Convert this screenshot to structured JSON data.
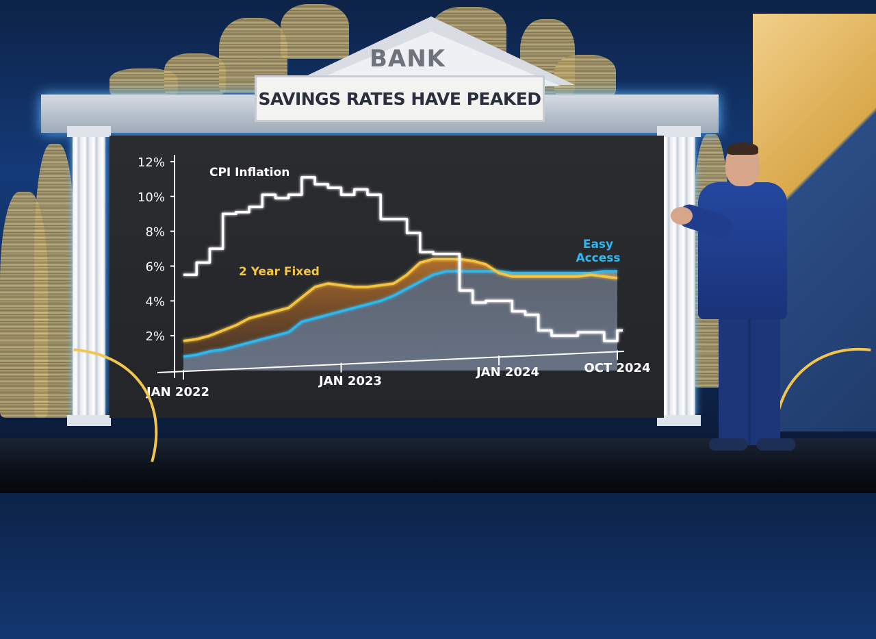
{
  "scene": {
    "roof_label": "BANK",
    "title": "SAVINGS RATES HAVE PEAKED"
  },
  "colors": {
    "cpi": "#ffffff",
    "fixed": "#f5c542",
    "easy": "#2fb8f0",
    "axis": "#ffffff",
    "screen": "#262729"
  },
  "chart_data": {
    "type": "line",
    "title": "SAVINGS RATES HAVE PEAKED",
    "ylim": [
      0,
      12
    ],
    "yticks": [
      2,
      4,
      6,
      8,
      10,
      12
    ],
    "ytick_labels": [
      "2%",
      "4%",
      "6%",
      "8%",
      "10%",
      "12%"
    ],
    "xlim": [
      "2022-01",
      "2024-10"
    ],
    "xticks": [
      "2022-01",
      "2023-01",
      "2024-01",
      "2024-10"
    ],
    "xtick_labels": [
      "JAN 2022",
      "JAN 2023",
      "JAN 2024",
      "OCT 2024"
    ],
    "x": [
      "2022-01",
      "2022-02",
      "2022-03",
      "2022-04",
      "2022-05",
      "2022-06",
      "2022-07",
      "2022-08",
      "2022-09",
      "2022-10",
      "2022-11",
      "2022-12",
      "2023-01",
      "2023-02",
      "2023-03",
      "2023-04",
      "2023-05",
      "2023-06",
      "2023-07",
      "2023-08",
      "2023-09",
      "2023-10",
      "2023-11",
      "2023-12",
      "2024-01",
      "2024-02",
      "2024-03",
      "2024-04",
      "2024-05",
      "2024-06",
      "2024-07",
      "2024-08",
      "2024-09",
      "2024-10"
    ],
    "series": [
      {
        "name": "CPI Inflation",
        "label": "CPI Inflation",
        "style": "step",
        "values": [
          5.5,
          6.2,
          7.0,
          9.0,
          9.1,
          9.4,
          10.1,
          9.9,
          10.1,
          11.1,
          10.7,
          10.5,
          10.1,
          10.4,
          10.1,
          8.7,
          8.7,
          7.9,
          6.8,
          6.7,
          6.7,
          4.6,
          3.9,
          4.0,
          4.0,
          3.4,
          3.2,
          2.3,
          2.0,
          2.0,
          2.2,
          2.2,
          1.7,
          2.3
        ]
      },
      {
        "name": "2 Year Fixed",
        "label": "2 Year Fixed",
        "style": "line",
        "values": [
          1.7,
          1.8,
          2.0,
          2.3,
          2.6,
          3.0,
          3.2,
          3.4,
          3.6,
          4.2,
          4.8,
          5.0,
          4.9,
          4.8,
          4.8,
          4.9,
          5.0,
          5.5,
          6.2,
          6.4,
          6.4,
          6.4,
          6.3,
          6.1,
          5.6,
          5.4,
          5.4,
          5.4,
          5.4,
          5.4,
          5.4,
          5.5,
          5.4,
          5.3
        ]
      },
      {
        "name": "Easy Access",
        "label": "Easy\nAccess",
        "style": "line",
        "values": [
          0.8,
          0.9,
          1.1,
          1.2,
          1.4,
          1.6,
          1.8,
          2.0,
          2.2,
          2.8,
          3.0,
          3.2,
          3.4,
          3.6,
          3.8,
          4.0,
          4.3,
          4.7,
          5.1,
          5.5,
          5.7,
          5.7,
          5.7,
          5.7,
          5.7,
          5.6,
          5.6,
          5.6,
          5.6,
          5.6,
          5.6,
          5.6,
          5.7,
          5.7
        ]
      }
    ]
  }
}
